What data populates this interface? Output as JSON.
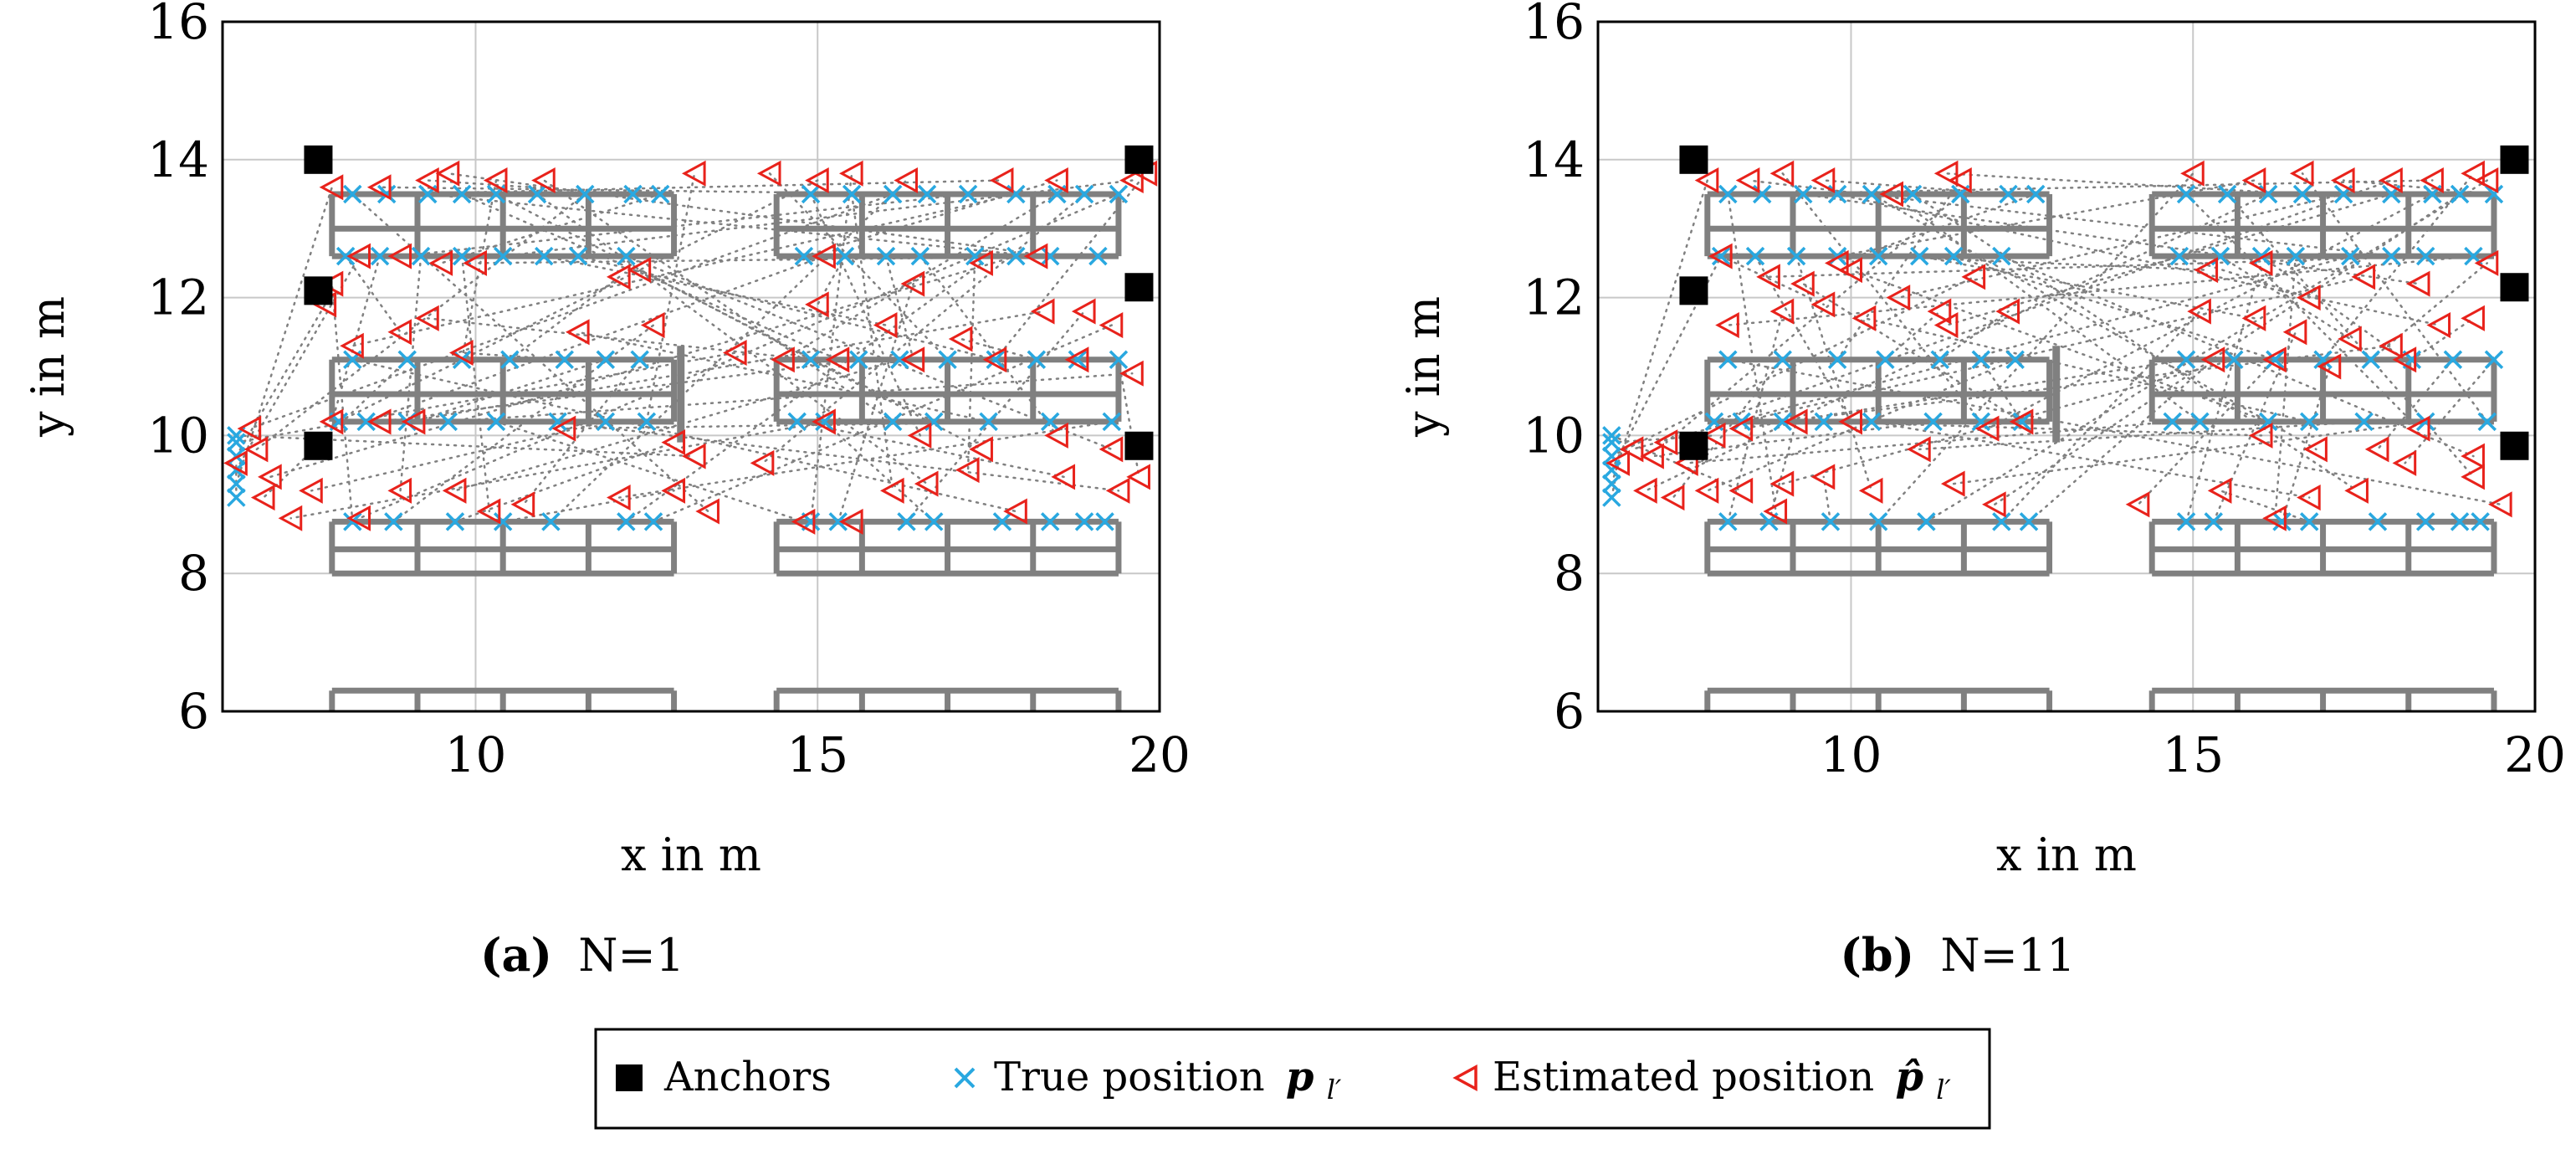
{
  "chart_data": [
    {
      "type": "scatter",
      "caption_label": "(a)",
      "caption_text": "N=1",
      "xlabel": "x in m",
      "ylabel": "y in m",
      "xlim": [
        6.3,
        20
      ],
      "ylim": [
        6,
        16
      ],
      "xticks": [
        10,
        15,
        20
      ],
      "yticks": [
        6,
        8,
        10,
        12,
        14,
        16
      ],
      "grid": true,
      "anchors": [
        [
          7.7,
          14.0
        ],
        [
          19.7,
          14.0
        ],
        [
          7.7,
          12.1
        ],
        [
          19.7,
          12.15
        ],
        [
          7.7,
          9.85
        ],
        [
          19.7,
          9.85
        ]
      ],
      "true_positions": [
        [
          6.5,
          9.1
        ],
        [
          6.5,
          9.3
        ],
        [
          6.5,
          9.5
        ],
        [
          6.5,
          9.7
        ],
        [
          6.5,
          9.9
        ],
        [
          6.5,
          10.0
        ],
        [
          8.2,
          13.5
        ],
        [
          8.7,
          13.5
        ],
        [
          9.3,
          13.5
        ],
        [
          9.8,
          13.5
        ],
        [
          10.3,
          13.5
        ],
        [
          10.9,
          13.5
        ],
        [
          11.6,
          13.5
        ],
        [
          12.3,
          13.5
        ],
        [
          12.7,
          13.5
        ],
        [
          8.1,
          12.6
        ],
        [
          8.6,
          12.6
        ],
        [
          9.2,
          12.6
        ],
        [
          9.8,
          12.6
        ],
        [
          10.4,
          12.6
        ],
        [
          11.0,
          12.6
        ],
        [
          11.5,
          12.6
        ],
        [
          12.2,
          12.6
        ],
        [
          8.2,
          11.1
        ],
        [
          9.0,
          11.1
        ],
        [
          9.8,
          11.1
        ],
        [
          10.5,
          11.1
        ],
        [
          11.3,
          11.1
        ],
        [
          11.9,
          11.1
        ],
        [
          12.4,
          11.1
        ],
        [
          8.0,
          10.2
        ],
        [
          8.4,
          10.2
        ],
        [
          9.0,
          10.2
        ],
        [
          9.6,
          10.2
        ],
        [
          10.3,
          10.2
        ],
        [
          11.2,
          10.2
        ],
        [
          11.9,
          10.2
        ],
        [
          12.5,
          10.2
        ],
        [
          8.2,
          8.75
        ],
        [
          8.8,
          8.75
        ],
        [
          9.7,
          8.75
        ],
        [
          10.4,
          8.75
        ],
        [
          11.1,
          8.75
        ],
        [
          12.2,
          8.75
        ],
        [
          12.6,
          8.75
        ],
        [
          14.9,
          13.5
        ],
        [
          15.5,
          13.5
        ],
        [
          16.1,
          13.5
        ],
        [
          16.6,
          13.5
        ],
        [
          17.2,
          13.5
        ],
        [
          17.9,
          13.5
        ],
        [
          18.5,
          13.5
        ],
        [
          18.9,
          13.5
        ],
        [
          19.4,
          13.5
        ],
        [
          14.8,
          12.6
        ],
        [
          15.4,
          12.6
        ],
        [
          16.0,
          12.6
        ],
        [
          16.5,
          12.6
        ],
        [
          17.3,
          12.6
        ],
        [
          17.9,
          12.6
        ],
        [
          18.4,
          12.6
        ],
        [
          19.1,
          12.6
        ],
        [
          14.9,
          11.1
        ],
        [
          15.6,
          11.1
        ],
        [
          16.2,
          11.1
        ],
        [
          16.9,
          11.1
        ],
        [
          17.6,
          11.1
        ],
        [
          18.2,
          11.1
        ],
        [
          18.8,
          11.1
        ],
        [
          19.4,
          11.1
        ],
        [
          14.7,
          10.2
        ],
        [
          15.1,
          10.2
        ],
        [
          16.1,
          10.2
        ],
        [
          16.7,
          10.2
        ],
        [
          17.5,
          10.2
        ],
        [
          18.4,
          10.2
        ],
        [
          19.3,
          10.2
        ],
        [
          14.9,
          8.75
        ],
        [
          15.3,
          8.75
        ],
        [
          16.3,
          8.75
        ],
        [
          16.7,
          8.75
        ],
        [
          17.7,
          8.75
        ],
        [
          18.4,
          8.75
        ],
        [
          18.9,
          8.75
        ],
        [
          19.2,
          8.75
        ]
      ],
      "estimated_positions": [
        [
          6.5,
          9.6
        ],
        [
          6.7,
          10.1
        ],
        [
          6.8,
          9.8
        ],
        [
          7.0,
          9.4
        ],
        [
          6.9,
          9.1
        ],
        [
          7.3,
          8.8
        ],
        [
          7.6,
          9.2
        ],
        [
          7.9,
          13.6
        ],
        [
          8.6,
          13.6
        ],
        [
          9.3,
          13.7
        ],
        [
          9.6,
          13.8
        ],
        [
          10.3,
          13.7
        ],
        [
          11.0,
          13.7
        ],
        [
          13.2,
          13.8
        ],
        [
          8.3,
          12.6
        ],
        [
          8.9,
          12.6
        ],
        [
          9.5,
          12.5
        ],
        [
          10.0,
          12.5
        ],
        [
          12.1,
          12.3
        ],
        [
          12.4,
          12.4
        ],
        [
          7.9,
          12.2
        ],
        [
          7.8,
          11.9
        ],
        [
          8.2,
          11.3
        ],
        [
          8.9,
          11.5
        ],
        [
          9.3,
          11.7
        ],
        [
          9.8,
          11.2
        ],
        [
          11.5,
          11.5
        ],
        [
          12.6,
          11.6
        ],
        [
          13.8,
          11.2
        ],
        [
          14.5,
          11.1
        ],
        [
          7.9,
          10.2
        ],
        [
          8.6,
          10.2
        ],
        [
          9.1,
          10.2
        ],
        [
          11.3,
          10.1
        ],
        [
          12.9,
          9.9
        ],
        [
          13.2,
          9.7
        ],
        [
          14.2,
          9.6
        ],
        [
          8.9,
          9.2
        ],
        [
          9.7,
          9.2
        ],
        [
          10.7,
          9.0
        ],
        [
          12.1,
          9.1
        ],
        [
          12.9,
          9.2
        ],
        [
          13.4,
          8.9
        ],
        [
          8.3,
          8.8
        ],
        [
          10.2,
          8.9
        ],
        [
          14.3,
          13.8
        ],
        [
          15.0,
          13.7
        ],
        [
          15.5,
          13.8
        ],
        [
          16.3,
          13.7
        ],
        [
          17.7,
          13.7
        ],
        [
          18.5,
          13.7
        ],
        [
          19.6,
          13.7
        ],
        [
          19.8,
          13.8
        ],
        [
          15.1,
          12.6
        ],
        [
          16.4,
          12.2
        ],
        [
          17.4,
          12.5
        ],
        [
          18.2,
          12.6
        ],
        [
          15.0,
          11.9
        ],
        [
          16.0,
          11.6
        ],
        [
          17.1,
          11.4
        ],
        [
          18.3,
          11.8
        ],
        [
          18.9,
          11.8
        ],
        [
          19.3,
          11.6
        ],
        [
          15.3,
          11.1
        ],
        [
          16.4,
          11.1
        ],
        [
          17.6,
          11.1
        ],
        [
          18.8,
          11.1
        ],
        [
          19.6,
          10.9
        ],
        [
          15.1,
          10.2
        ],
        [
          16.5,
          10.0
        ],
        [
          17.4,
          9.8
        ],
        [
          18.5,
          10.0
        ],
        [
          19.3,
          9.8
        ],
        [
          19.7,
          9.4
        ],
        [
          14.8,
          8.75
        ],
        [
          15.5,
          8.75
        ],
        [
          16.1,
          9.2
        ],
        [
          16.6,
          9.3
        ],
        [
          17.2,
          9.5
        ],
        [
          17.9,
          8.9
        ],
        [
          18.6,
          9.4
        ],
        [
          19.4,
          9.2
        ]
      ]
    },
    {
      "type": "scatter",
      "caption_label": "(b)",
      "caption_text": "N=11",
      "xlabel": "x in m",
      "ylabel": "y in m",
      "xlim": [
        6.3,
        20
      ],
      "ylim": [
        6,
        16
      ],
      "xticks": [
        10,
        15,
        20
      ],
      "yticks": [
        6,
        8,
        10,
        12,
        14,
        16
      ],
      "grid": true,
      "anchors": [
        [
          7.7,
          14.0
        ],
        [
          19.7,
          14.0
        ],
        [
          7.7,
          12.1
        ],
        [
          19.7,
          12.15
        ],
        [
          7.7,
          9.85
        ],
        [
          19.7,
          9.85
        ]
      ],
      "true_positions": [
        [
          6.5,
          9.1
        ],
        [
          6.5,
          9.3
        ],
        [
          6.5,
          9.5
        ],
        [
          6.5,
          9.7
        ],
        [
          6.5,
          9.9
        ],
        [
          6.5,
          10.0
        ],
        [
          8.2,
          13.5
        ],
        [
          8.7,
          13.5
        ],
        [
          9.3,
          13.5
        ],
        [
          9.8,
          13.5
        ],
        [
          10.3,
          13.5
        ],
        [
          10.9,
          13.5
        ],
        [
          11.6,
          13.5
        ],
        [
          12.3,
          13.5
        ],
        [
          12.7,
          13.5
        ],
        [
          8.1,
          12.6
        ],
        [
          8.6,
          12.6
        ],
        [
          9.2,
          12.6
        ],
        [
          9.8,
          12.6
        ],
        [
          10.4,
          12.6
        ],
        [
          11.0,
          12.6
        ],
        [
          11.5,
          12.6
        ],
        [
          12.2,
          12.6
        ],
        [
          8.2,
          11.1
        ],
        [
          9.0,
          11.1
        ],
        [
          9.8,
          11.1
        ],
        [
          10.5,
          11.1
        ],
        [
          11.3,
          11.1
        ],
        [
          11.9,
          11.1
        ],
        [
          12.4,
          11.1
        ],
        [
          8.0,
          10.2
        ],
        [
          8.4,
          10.2
        ],
        [
          9.0,
          10.2
        ],
        [
          9.6,
          10.2
        ],
        [
          10.3,
          10.2
        ],
        [
          11.2,
          10.2
        ],
        [
          11.9,
          10.2
        ],
        [
          12.5,
          10.2
        ],
        [
          8.2,
          8.75
        ],
        [
          8.8,
          8.75
        ],
        [
          9.7,
          8.75
        ],
        [
          10.4,
          8.75
        ],
        [
          11.1,
          8.75
        ],
        [
          12.2,
          8.75
        ],
        [
          12.6,
          8.75
        ],
        [
          14.9,
          13.5
        ],
        [
          15.5,
          13.5
        ],
        [
          16.1,
          13.5
        ],
        [
          16.6,
          13.5
        ],
        [
          17.2,
          13.5
        ],
        [
          17.9,
          13.5
        ],
        [
          18.5,
          13.5
        ],
        [
          18.9,
          13.5
        ],
        [
          19.4,
          13.5
        ],
        [
          14.8,
          12.6
        ],
        [
          15.4,
          12.6
        ],
        [
          16.0,
          12.6
        ],
        [
          16.5,
          12.6
        ],
        [
          17.3,
          12.6
        ],
        [
          17.9,
          12.6
        ],
        [
          18.4,
          12.6
        ],
        [
          19.1,
          12.6
        ],
        [
          14.9,
          11.1
        ],
        [
          15.6,
          11.1
        ],
        [
          16.2,
          11.1
        ],
        [
          16.9,
          11.1
        ],
        [
          17.6,
          11.1
        ],
        [
          18.2,
          11.1
        ],
        [
          18.8,
          11.1
        ],
        [
          19.4,
          11.1
        ],
        [
          14.7,
          10.2
        ],
        [
          15.1,
          10.2
        ],
        [
          16.1,
          10.2
        ],
        [
          16.7,
          10.2
        ],
        [
          17.5,
          10.2
        ],
        [
          18.4,
          10.2
        ],
        [
          19.3,
          10.2
        ],
        [
          14.9,
          8.75
        ],
        [
          15.3,
          8.75
        ],
        [
          16.3,
          8.75
        ],
        [
          16.7,
          8.75
        ],
        [
          17.7,
          8.75
        ],
        [
          18.4,
          8.75
        ],
        [
          18.9,
          8.75
        ],
        [
          19.2,
          8.75
        ]
      ],
      "estimated_positions": [
        [
          6.6,
          9.6
        ],
        [
          6.8,
          9.8
        ],
        [
          7.1,
          9.7
        ],
        [
          7.3,
          9.9
        ],
        [
          7.6,
          9.6
        ],
        [
          7.0,
          9.2
        ],
        [
          7.4,
          9.1
        ],
        [
          7.9,
          13.7
        ],
        [
          8.5,
          13.7
        ],
        [
          9.0,
          13.8
        ],
        [
          9.6,
          13.7
        ],
        [
          10.6,
          13.5
        ],
        [
          11.4,
          13.8
        ],
        [
          11.6,
          13.7
        ],
        [
          8.1,
          12.6
        ],
        [
          8.8,
          12.3
        ],
        [
          9.3,
          12.2
        ],
        [
          9.8,
          12.5
        ],
        [
          10.0,
          12.4
        ],
        [
          10.7,
          12.0
        ],
        [
          11.3,
          11.8
        ],
        [
          11.8,
          12.3
        ],
        [
          8.2,
          11.6
        ],
        [
          9.0,
          11.8
        ],
        [
          9.6,
          11.9
        ],
        [
          10.2,
          11.7
        ],
        [
          11.4,
          11.6
        ],
        [
          12.3,
          11.8
        ],
        [
          8.0,
          10.0
        ],
        [
          8.4,
          10.1
        ],
        [
          9.2,
          10.2
        ],
        [
          10.0,
          10.2
        ],
        [
          11.0,
          9.8
        ],
        [
          12.0,
          10.1
        ],
        [
          12.5,
          10.2
        ],
        [
          8.4,
          9.2
        ],
        [
          9.0,
          9.3
        ],
        [
          9.6,
          9.4
        ],
        [
          10.3,
          9.2
        ],
        [
          11.5,
          9.3
        ],
        [
          12.1,
          9.0
        ],
        [
          7.9,
          9.2
        ],
        [
          8.9,
          8.9
        ],
        [
          14.2,
          9.0
        ],
        [
          15.0,
          13.8
        ],
        [
          15.9,
          13.7
        ],
        [
          16.6,
          13.8
        ],
        [
          17.2,
          13.7
        ],
        [
          17.9,
          13.7
        ],
        [
          18.5,
          13.7
        ],
        [
          19.1,
          13.8
        ],
        [
          19.3,
          13.7
        ],
        [
          15.2,
          12.4
        ],
        [
          16.0,
          12.5
        ],
        [
          16.7,
          12.0
        ],
        [
          17.5,
          12.3
        ],
        [
          18.3,
          12.2
        ],
        [
          19.3,
          12.5
        ],
        [
          15.1,
          11.8
        ],
        [
          15.9,
          11.7
        ],
        [
          16.5,
          11.5
        ],
        [
          17.3,
          11.4
        ],
        [
          17.9,
          11.3
        ],
        [
          18.6,
          11.6
        ],
        [
          19.1,
          11.7
        ],
        [
          15.3,
          11.1
        ],
        [
          16.2,
          11.1
        ],
        [
          17.0,
          11.0
        ],
        [
          18.1,
          11.1
        ],
        [
          16.0,
          10.0
        ],
        [
          16.8,
          9.8
        ],
        [
          17.7,
          9.8
        ],
        [
          18.3,
          10.1
        ],
        [
          19.1,
          9.7
        ],
        [
          15.4,
          9.2
        ],
        [
          16.2,
          8.8
        ],
        [
          16.7,
          9.1
        ],
        [
          17.4,
          9.2
        ],
        [
          18.1,
          9.6
        ],
        [
          19.1,
          9.4
        ],
        [
          19.5,
          9.0
        ]
      ]
    }
  ],
  "legend": {
    "anchors_label": "Anchors",
    "true_label": "True position",
    "true_symbol": "p",
    "true_subscript": "l′",
    "est_label": "Estimated position",
    "est_symbol": "p̂",
    "est_subscript": "l′"
  },
  "colors": {
    "true": "#29a8e0",
    "estimated": "#e8221b",
    "anchor": "#000000",
    "shelf": "#808080",
    "grid": "#c8c8c8",
    "link": "#808080"
  }
}
